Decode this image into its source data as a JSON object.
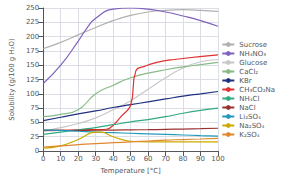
{
  "chart_data": {
    "type": "line",
    "xlabel": "Temperature [°C]",
    "ylabel": "Solubility (g/100 g H₂O)",
    "xlim": [
      0,
      100
    ],
    "ylim": [
      0,
      250
    ],
    "xticks": [
      0,
      10,
      20,
      30,
      40,
      50,
      60,
      70,
      80,
      90,
      100
    ],
    "yticks": [
      0,
      25,
      50,
      75,
      100,
      125,
      150,
      175,
      200,
      225,
      250
    ],
    "grid": true,
    "legend": "right",
    "series": [
      {
        "name": "Sucrose",
        "color": "#b0b0b0",
        "x": [
          0,
          10,
          20,
          30,
          40,
          50,
          60,
          70,
          80,
          90,
          100
        ],
        "values": [
          179,
          190,
          203,
          216,
          228,
          237,
          243,
          246,
          247,
          246,
          244
        ]
      },
      {
        "name": "NH₄NO₃",
        "color": "#8060c0",
        "x": [
          0,
          10,
          20,
          25,
          30,
          40,
          50,
          60,
          70,
          80,
          90,
          100
        ],
        "values": [
          118,
          150,
          192,
          215,
          232,
          248,
          250,
          248,
          243,
          236,
          228,
          218
        ]
      },
      {
        "name": "Glucose",
        "color": "#c8c8c8",
        "x": [
          0,
          10,
          20,
          30,
          40,
          50,
          60,
          70,
          80,
          90,
          100
        ],
        "values": [
          35,
          41,
          48,
          58,
          72,
          88,
          108,
          128,
          145,
          156,
          160
        ]
      },
      {
        "name": "CaCl₂",
        "color": "#88bb88",
        "x": [
          0,
          10,
          20,
          30,
          40,
          50,
          60,
          70,
          80,
          90,
          100
        ],
        "values": [
          60,
          64,
          72,
          100,
          115,
          128,
          136,
          142,
          147,
          151,
          155
        ]
      },
      {
        "name": "KBr",
        "color": "#203080",
        "x": [
          0,
          10,
          20,
          30,
          40,
          50,
          60,
          70,
          80,
          90,
          100
        ],
        "values": [
          53,
          59,
          65,
          70,
          76,
          81,
          86,
          91,
          96,
          100,
          104
        ]
      },
      {
        "name": "CH₃CO₂Na",
        "color": "#e03030",
        "x": [
          0,
          10,
          20,
          30,
          36,
          40,
          45,
          50,
          53,
          58,
          65,
          75,
          100
        ],
        "values": [
          36,
          36.5,
          37,
          37.5,
          38,
          45,
          62,
          80,
          140,
          148,
          155,
          160,
          168
        ]
      },
      {
        "name": "NH₄Cl",
        "color": "#30aa80",
        "x": [
          0,
          10,
          20,
          30,
          40,
          50,
          60,
          70,
          80,
          90,
          100
        ],
        "values": [
          29,
          33,
          37,
          41,
          46,
          51,
          55,
          60,
          66,
          71,
          75
        ]
      },
      {
        "name": "NaCl",
        "color": "#993333",
        "x": [
          0,
          10,
          20,
          30,
          40,
          50,
          60,
          70,
          80,
          90,
          100
        ],
        "values": [
          35.7,
          35.8,
          36.0,
          36.3,
          36.6,
          37.0,
          37.3,
          37.8,
          38.4,
          39.0,
          39.8
        ]
      },
      {
        "name": "Li₂SO₄",
        "color": "#2299bb",
        "x": [
          0,
          10,
          20,
          30,
          40,
          50,
          60,
          70,
          80,
          90,
          100
        ],
        "values": [
          37,
          36,
          34.5,
          33,
          32,
          31,
          30,
          29,
          28,
          27,
          26
        ]
      },
      {
        "name": "Na₂SO₄",
        "color": "#ccaa00",
        "x": [
          0,
          10,
          20,
          30,
          33,
          40,
          50,
          60,
          70,
          80,
          90,
          100
        ],
        "values": [
          5,
          9,
          20,
          33,
          33,
          25,
          17,
          16,
          16,
          16,
          16,
          16
        ]
      },
      {
        "name": "K₂SO₄",
        "color": "#e08830",
        "x": [
          0,
          10,
          20,
          30,
          40,
          50,
          60,
          70,
          80,
          90,
          100
        ],
        "values": [
          7,
          9,
          11,
          13,
          14.5,
          16,
          17.5,
          19,
          20,
          21,
          22
        ]
      }
    ]
  }
}
